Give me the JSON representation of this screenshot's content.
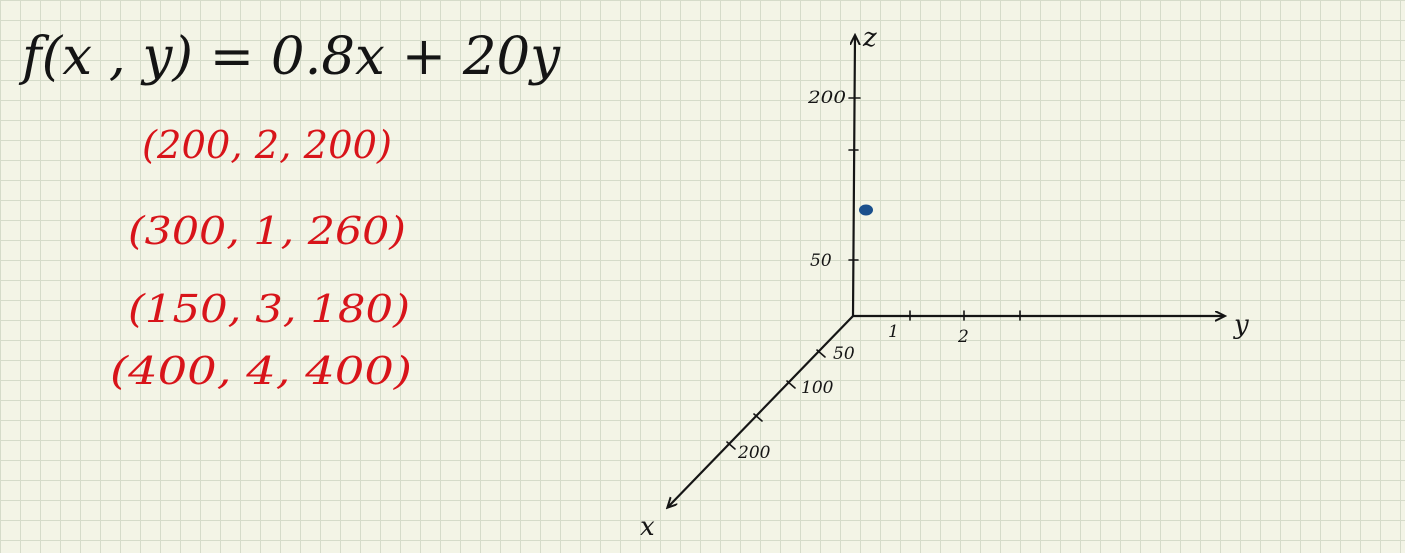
{
  "equation": "f(x , y) = 0.8x + 20y",
  "points": [
    "(200, 2, 200)",
    "(300, 1, 260)",
    "(150, 3, 180)",
    "(400, 4, 400)"
  ],
  "axes": {
    "z_label": "z",
    "y_label": "y",
    "x_label": "x",
    "z_ticks": [
      "200",
      "50"
    ],
    "y_ticks": [
      "1",
      "2"
    ],
    "x_ticks": [
      "50",
      "100",
      "200"
    ]
  },
  "colors": {
    "ink": "#141414",
    "red_ink": "#d8141a",
    "dot": "#1a4f8c"
  }
}
